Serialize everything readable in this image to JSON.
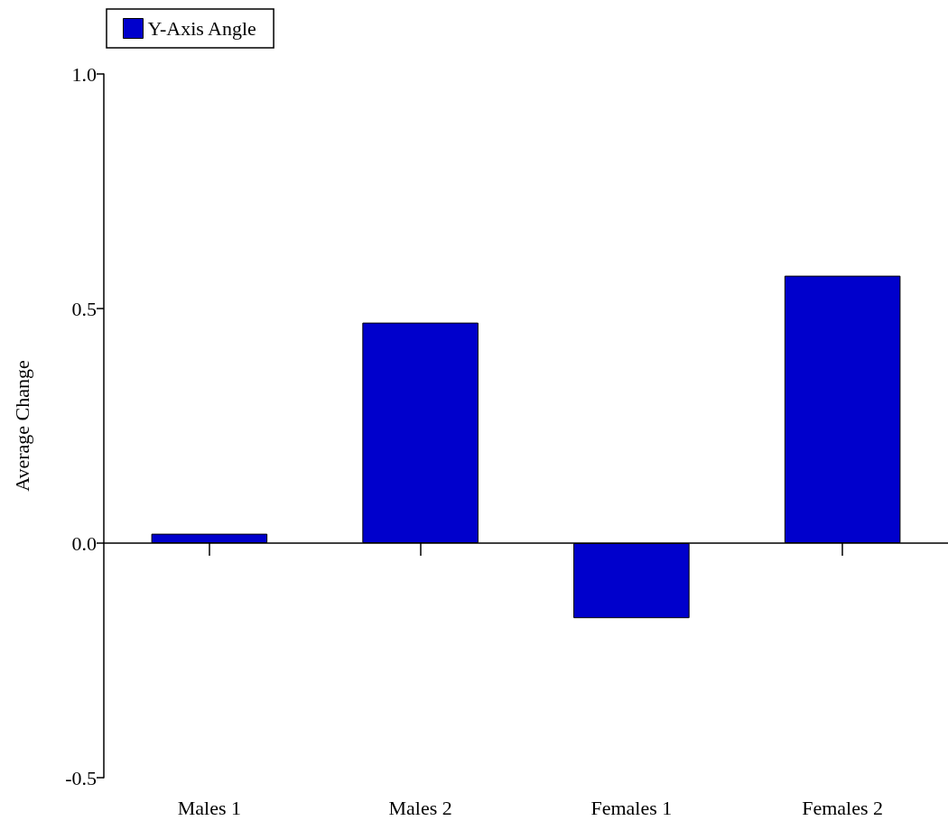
{
  "chart_data": {
    "type": "bar",
    "ylabel": "Average Change",
    "categories": [
      "Males 1",
      "Males 2",
      "Females 1",
      "Females 2"
    ],
    "series": [
      {
        "name": "Y-Axis Angle",
        "color": "#0000cc",
        "values": [
          0.02,
          0.47,
          -0.16,
          0.57
        ]
      }
    ],
    "ylim": [
      -0.5,
      1.0
    ],
    "yticks": [
      {
        "value": -0.5,
        "label": "-0.5"
      },
      {
        "value": 0,
        "label": "0.0"
      },
      {
        "value": 0.5,
        "label": "0.5"
      },
      {
        "value": 1.0,
        "label": "1.0"
      }
    ],
    "legend": "top left"
  }
}
